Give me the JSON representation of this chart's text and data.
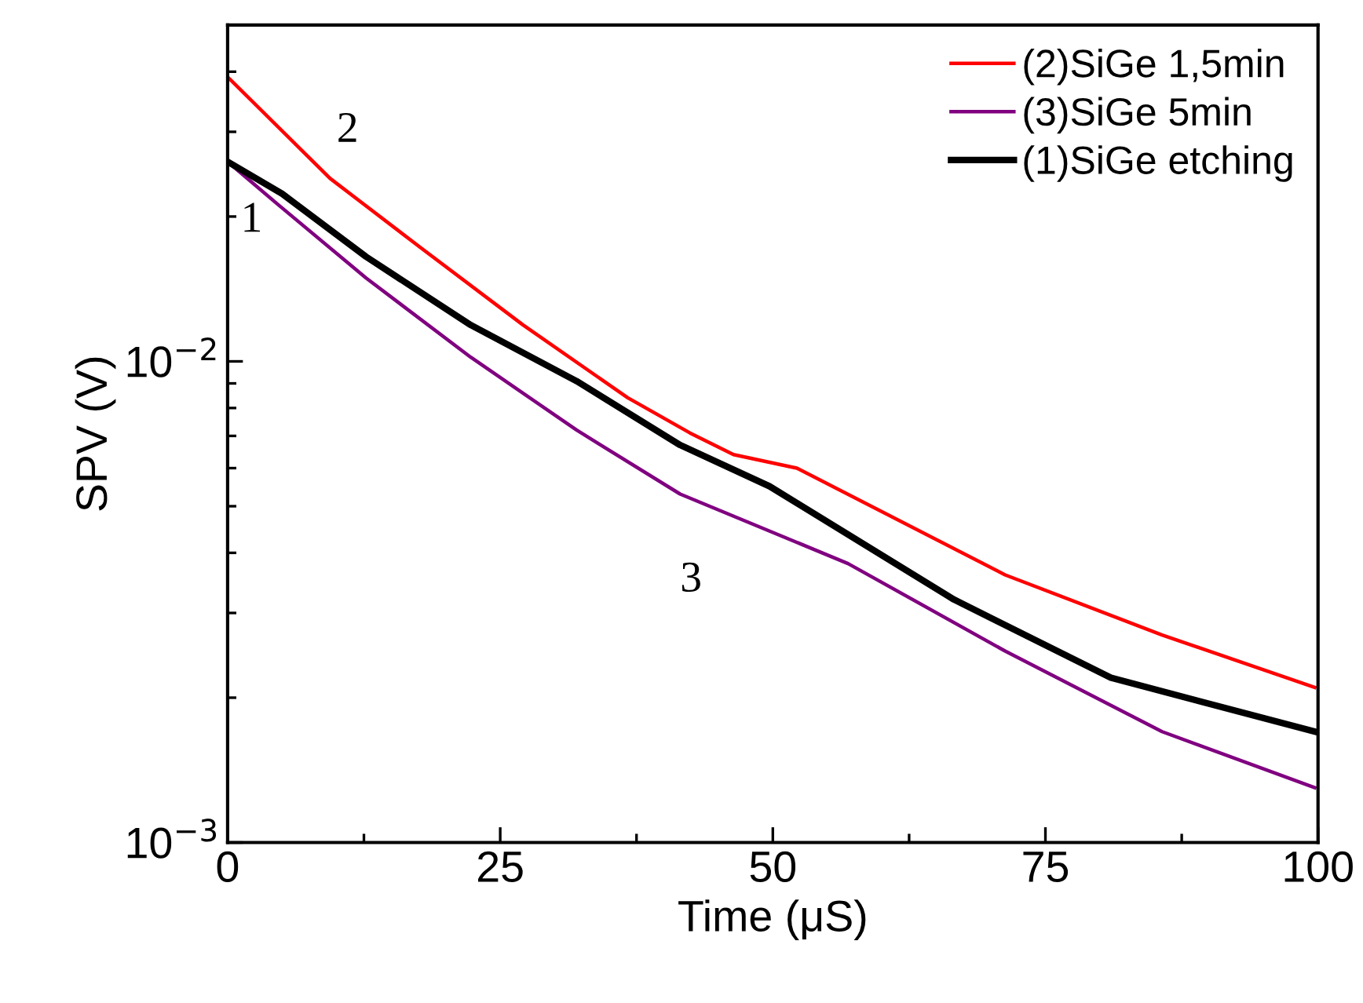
{
  "chart_data": {
    "type": "line",
    "xlabel": "Time (μS)",
    "ylabel": "SPV (V)",
    "log": "y",
    "xlim": [
      0,
      100
    ],
    "xticks": [
      0,
      25,
      50,
      75,
      100
    ],
    "ylim": [
      0.001,
      0.05
    ],
    "yticks": [
      {
        "value": 0.001,
        "label": "10$^{−3}$"
      },
      {
        "value": 0.01,
        "label": "10$^{−2}$"
      }
    ],
    "legend": "top right",
    "grid": false,
    "series": [
      {
        "name": "(2)SiGe 1,5min",
        "color": "#ff0000",
        "x": [
          0,
          9.4,
          17.6,
          27.1,
          36.7,
          42.4,
          46.4,
          52.2,
          71.3,
          85.7,
          99.7
        ],
        "values": [
          0.039,
          0.024,
          0.0173,
          0.0119,
          0.0084,
          0.0071,
          0.0064,
          0.006,
          0.0036,
          0.0027,
          0.0021
        ]
      },
      {
        "name": "(3)SiGe 5min",
        "color": "#800080",
        "x": [
          0,
          4.6,
          12.7,
          22.3,
          32,
          41.5,
          56.9,
          71.3,
          85.7,
          99.7
        ],
        "values": [
          0.026,
          0.0212,
          0.0149,
          0.0102,
          0.0072,
          0.0053,
          0.0038,
          0.0025,
          0.0017,
          0.0013
        ]
      },
      {
        "name": "(1)SiGe etching",
        "color": "#000000",
        "x": [
          0,
          5,
          12.7,
          22.3,
          32,
          41.5,
          49.7,
          66.6,
          81,
          99.7
        ],
        "values": [
          0.026,
          0.0223,
          0.0165,
          0.0119,
          0.0091,
          0.0067,
          0.0055,
          0.0032,
          0.0022,
          0.0017
        ]
      }
    ],
    "annotations": [
      "1",
      "2",
      "3"
    ]
  }
}
